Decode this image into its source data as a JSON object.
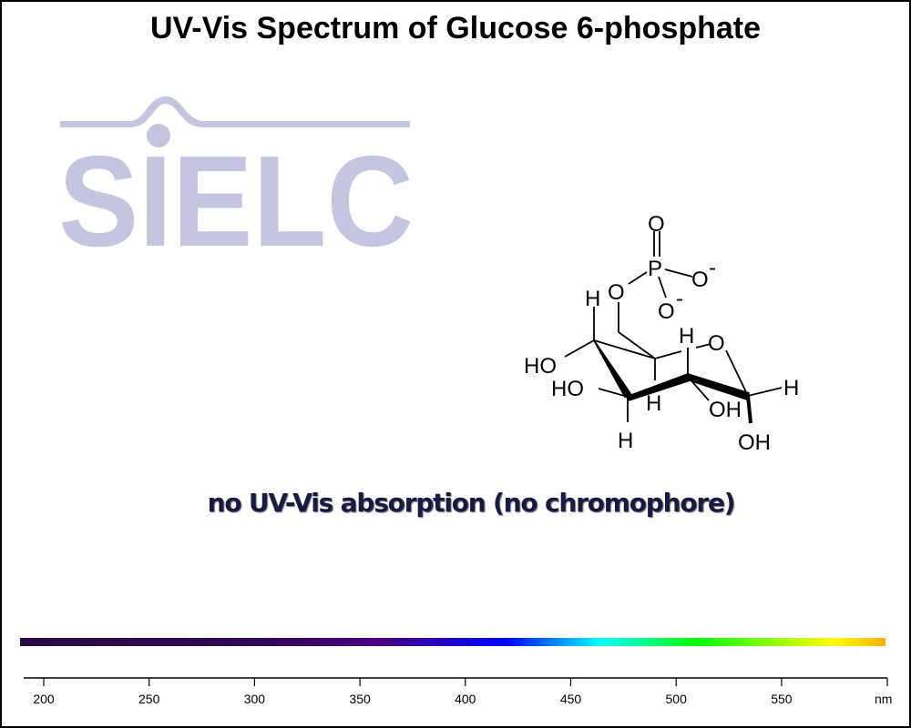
{
  "title": "UV-Vis Spectrum of Glucose 6-phosphate",
  "logo_text": "SIELC",
  "colors": {
    "logo": "#c5c5e0",
    "subtitle": "#1a1a40"
  },
  "annotation": "no UV-Vis absorption (no chromophore)",
  "molecule": {
    "atoms": {
      "o_double": "O",
      "p": "P",
      "o_minus_1": "O",
      "o_minus_2": "O",
      "charge": "-",
      "o_ester": "O",
      "h": "H",
      "ho": "HO",
      "oh": "OH",
      "o_ring": "O"
    }
  },
  "chart_data": {
    "type": "line",
    "title": "UV-Vis Spectrum of Glucose 6-phosphate",
    "xlabel": "nm",
    "xlim": [
      190,
      600
    ],
    "xticks": [
      200,
      250,
      300,
      350,
      400,
      450,
      500,
      550
    ],
    "xtick_labels": [
      "200",
      "250",
      "300",
      "350",
      "400",
      "450",
      "500",
      "550"
    ],
    "series": [],
    "spectrum_bar": {
      "range_nm": [
        190,
        600
      ],
      "stops": [
        {
          "nm": 190,
          "color": "#2a0a45"
        },
        {
          "nm": 300,
          "color": "#2e0854"
        },
        {
          "nm": 360,
          "color": "#4b0082"
        },
        {
          "nm": 420,
          "color": "#0000ff"
        },
        {
          "nm": 465,
          "color": "#00ffff"
        },
        {
          "nm": 510,
          "color": "#00ff00"
        },
        {
          "nm": 575,
          "color": "#ffff00"
        },
        {
          "nm": 600,
          "color": "#ffb000"
        }
      ]
    },
    "annotations": [
      "no UV-Vis absorption (no chromophore)"
    ]
  }
}
